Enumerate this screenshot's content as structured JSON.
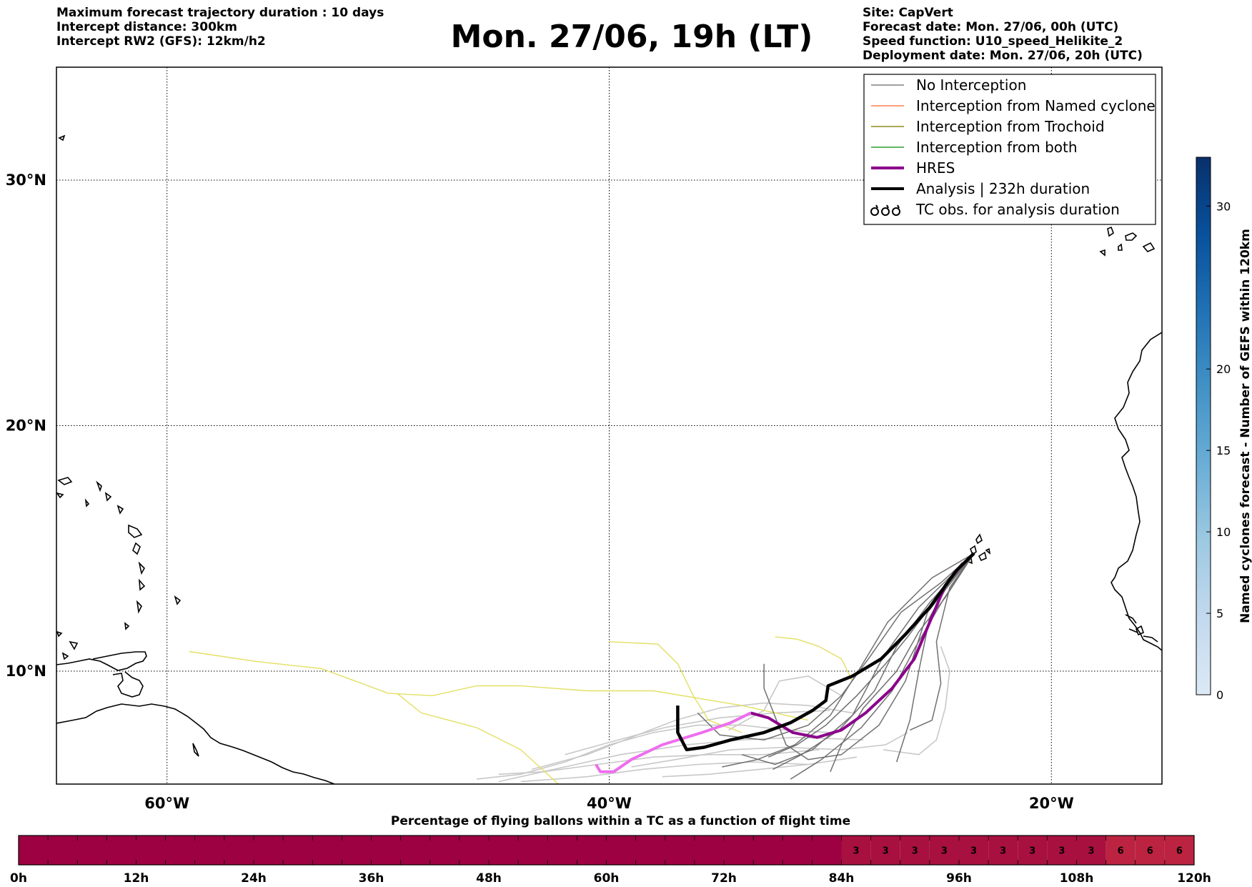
{
  "header_left": [
    "Maximum forecast trajectory duration : 10 days",
    "Intercept distance: 300km",
    "Intercept RW2 (GFS):  12km/h2"
  ],
  "title": "Mon. 27/06, 19h (LT)",
  "header_right": [
    "Site: CapVert",
    "Forecast date: Mon. 27/06, 00h (UTC)",
    "Speed function: U10_speed_Helikite_2",
    "Deployment date: Mon. 27/06, 20h (UTC)"
  ],
  "legend": [
    {
      "label": "No Interception",
      "color": "#808080",
      "style": "thin-line"
    },
    {
      "label": "Interception from Named cyclone",
      "color": "#ff7f50",
      "style": "thin-line"
    },
    {
      "label": "Interception from Trochoid",
      "color": "#8b8b20",
      "style": "thin-line"
    },
    {
      "label": "Interception from both",
      "color": "#2ca02c",
      "style": "thin-line"
    },
    {
      "label": "HRES",
      "color": "#8b008b",
      "style": "thick-line"
    },
    {
      "label": "Analysis | 232h duration",
      "color": "#000000",
      "style": "thick-line"
    },
    {
      "label": "TC obs. for analysis duration",
      "color": "#000000",
      "style": "tc-symbols"
    }
  ],
  "colorbar": {
    "label": "Named cyclones forecast - Number of GEFS within 120km",
    "ticks": [
      "0",
      "5",
      "10",
      "15",
      "20",
      "30"
    ],
    "colors": [
      "#dce9f6",
      "#c3d9ee",
      "#9dc9e2",
      "#6baed6",
      "#4292c6",
      "#2171b5",
      "#08519c",
      "#08306b"
    ]
  },
  "chart_data": [
    {
      "type": "map-trajectories",
      "projection": "equirectangular",
      "lon_range": [
        -65,
        -15
      ],
      "lat_range": [
        5.4,
        34.6
      ],
      "xticks": [
        {
          "value": -60,
          "label": "60°W"
        },
        {
          "value": -40,
          "label": "40°W"
        },
        {
          "value": -20,
          "label": "20°W"
        }
      ],
      "yticks": [
        {
          "value": 30,
          "label": "30°N"
        },
        {
          "value": 20,
          "label": "20°N"
        },
        {
          "value": 10,
          "label": "10°N"
        }
      ],
      "grid": true,
      "legend_position": "top-right",
      "launch_site": {
        "lon": -23.5,
        "lat": 14.8
      },
      "analysis_track": [
        [
          -23.5,
          14.8
        ],
        [
          -24.3,
          14.1
        ],
        [
          -25.5,
          12.6
        ],
        [
          -26.6,
          11.5
        ],
        [
          -27.7,
          10.5
        ],
        [
          -29.0,
          9.8
        ],
        [
          -30.1,
          9.4
        ],
        [
          -30.2,
          8.8
        ],
        [
          -30.8,
          8.4
        ],
        [
          -31.8,
          7.9
        ],
        [
          -33.0,
          7.5
        ],
        [
          -34.5,
          7.2
        ],
        [
          -35.7,
          6.9
        ],
        [
          -36.5,
          6.8
        ],
        [
          -36.9,
          7.5
        ],
        [
          -36.9,
          8.6
        ]
      ],
      "hres_track": [
        [
          -24.0,
          14.4
        ],
        [
          -24.8,
          13.5
        ],
        [
          -25.5,
          12.0
        ],
        [
          -26.2,
          10.5
        ],
        [
          -27.2,
          9.3
        ],
        [
          -28.4,
          8.3
        ],
        [
          -29.5,
          7.6
        ],
        [
          -30.6,
          7.3
        ],
        [
          -31.7,
          7.5
        ],
        [
          -32.8,
          8.1
        ],
        [
          -33.6,
          8.3
        ],
        [
          -34.5,
          7.9
        ],
        [
          -35.8,
          7.5
        ],
        [
          -37.6,
          7.0
        ],
        [
          -39.0,
          6.4
        ],
        [
          -39.8,
          5.9
        ],
        [
          -40.4,
          5.9
        ],
        [
          -40.6,
          6.2
        ]
      ],
      "trochoid_tracks": [
        [
          [
            -29.0,
            9.6
          ],
          [
            -29.5,
            10.5
          ],
          [
            -30.5,
            11.0
          ],
          [
            -31.5,
            11.3
          ],
          [
            -32.5,
            11.4
          ]
        ],
        [
          [
            -31.0,
            8.0
          ],
          [
            -32.5,
            8.3
          ],
          [
            -34.0,
            8.6
          ],
          [
            -36.0,
            8.9
          ],
          [
            -38.0,
            9.2
          ],
          [
            -41.0,
            9.2
          ],
          [
            -44.0,
            9.4
          ],
          [
            -46.0,
            9.4
          ],
          [
            -48.0,
            9.0
          ],
          [
            -50.0,
            9.1
          ],
          [
            -51.5,
            9.6
          ],
          [
            -53.0,
            10.1
          ],
          [
            -56.0,
            10.4
          ],
          [
            -59.0,
            10.8
          ]
        ],
        [
          [
            -34.0,
            7.5
          ],
          [
            -35.5,
            8.0
          ],
          [
            -36.2,
            9.0
          ],
          [
            -36.9,
            10.3
          ],
          [
            -37.8,
            11.1
          ],
          [
            -40.0,
            11.2
          ]
        ],
        [
          [
            -42.3,
            5.4
          ],
          [
            -44.0,
            6.8
          ],
          [
            -46.0,
            7.7
          ],
          [
            -48.5,
            8.3
          ],
          [
            -49.6,
            9.1
          ]
        ]
      ],
      "ensemble_tracks_near_site": [
        [
          [
            -23.5,
            14.8
          ],
          [
            -25.0,
            13.2
          ],
          [
            -26.5,
            11.4
          ],
          [
            -27.5,
            10.3
          ],
          [
            -28.8,
            9.0
          ],
          [
            -30.2,
            7.8
          ],
          [
            -31.5,
            7.0
          ],
          [
            -32.8,
            6.5
          ]
        ],
        [
          [
            -23.5,
            14.8
          ],
          [
            -24.8,
            13.0
          ],
          [
            -26.0,
            11.6
          ],
          [
            -27.0,
            10.0
          ],
          [
            -28.5,
            8.5
          ],
          [
            -29.5,
            7.0
          ],
          [
            -30.0,
            5.9
          ]
        ],
        [
          [
            -23.5,
            14.8
          ],
          [
            -25.5,
            12.8
          ],
          [
            -27.0,
            11.0
          ],
          [
            -28.0,
            9.2
          ],
          [
            -29.6,
            7.6
          ],
          [
            -31.3,
            6.6
          ],
          [
            -32.6,
            6.0
          ]
        ],
        [
          [
            -23.5,
            14.8
          ],
          [
            -24.5,
            13.8
          ],
          [
            -25.5,
            12.2
          ],
          [
            -26.0,
            10.0
          ],
          [
            -26.4,
            8.0
          ],
          [
            -27.0,
            6.3
          ]
        ],
        [
          [
            -23.5,
            14.8
          ],
          [
            -25.0,
            13.6
          ],
          [
            -26.8,
            12.4
          ],
          [
            -28.2,
            10.6
          ],
          [
            -29.5,
            9.0
          ],
          [
            -31.0,
            7.8
          ],
          [
            -33.0,
            7.2
          ],
          [
            -35.0,
            7.4
          ],
          [
            -36.0,
            8.3
          ]
        ],
        [
          [
            -23.5,
            14.8
          ],
          [
            -26.0,
            12.6
          ],
          [
            -27.6,
            10.6
          ],
          [
            -29.0,
            8.2
          ],
          [
            -30.8,
            6.8
          ],
          [
            -32.5,
            6.2
          ],
          [
            -34.0,
            6.6
          ]
        ],
        [
          [
            -23.5,
            14.8
          ],
          [
            -24.6,
            13.4
          ],
          [
            -25.2,
            11.2
          ],
          [
            -25.0,
            9.5
          ],
          [
            -25.4,
            8.0
          ],
          [
            -26.4,
            7.6
          ]
        ],
        [
          [
            -23.5,
            14.8
          ],
          [
            -25.4,
            13.8
          ],
          [
            -27.4,
            12.0
          ],
          [
            -28.6,
            10.2
          ],
          [
            -30.0,
            8.2
          ],
          [
            -31.6,
            7.0
          ],
          [
            -33.3,
            6.4
          ],
          [
            -34.9,
            6.1
          ]
        ],
        [
          [
            -23.5,
            14.8
          ],
          [
            -25.6,
            12.4
          ],
          [
            -26.6,
            9.6
          ],
          [
            -27.8,
            7.8
          ],
          [
            -29.5,
            6.6
          ],
          [
            -31.0,
            6.4
          ],
          [
            -32.0,
            7.0
          ],
          [
            -33.0,
            9.3
          ],
          [
            -33.0,
            10.3
          ]
        ],
        [
          [
            -23.5,
            14.8
          ],
          [
            -24.9,
            12.9
          ],
          [
            -26.2,
            10.9
          ],
          [
            -27.2,
            9.2
          ],
          [
            -28.6,
            7.7
          ],
          [
            -30.4,
            6.4
          ],
          [
            -31.8,
            5.6
          ]
        ]
      ],
      "ensemble_tracks_far": [
        [
          [
            -30.0,
            7.5
          ],
          [
            -32.0,
            7.6
          ],
          [
            -34.0,
            7.8
          ],
          [
            -36.0,
            7.8
          ],
          [
            -38.0,
            7.5
          ],
          [
            -40.0,
            7.0
          ],
          [
            -42.0,
            6.3
          ],
          [
            -44.0,
            5.8
          ],
          [
            -46.0,
            5.6
          ]
        ],
        [
          [
            -30.5,
            6.8
          ],
          [
            -33.0,
            6.6
          ],
          [
            -35.5,
            6.6
          ],
          [
            -38.0,
            6.5
          ],
          [
            -40.5,
            6.2
          ],
          [
            -43.0,
            5.9
          ],
          [
            -45.0,
            5.8
          ]
        ],
        [
          [
            -29.0,
            8.3
          ],
          [
            -31.0,
            8.6
          ],
          [
            -33.0,
            8.7
          ],
          [
            -35.0,
            8.5
          ],
          [
            -37.0,
            8.0
          ],
          [
            -39.0,
            7.3
          ],
          [
            -41.0,
            6.6
          ],
          [
            -43.5,
            6.0
          ]
        ],
        [
          [
            -31.0,
            6.2
          ],
          [
            -33.5,
            6.3
          ],
          [
            -36.0,
            6.2
          ],
          [
            -38.5,
            6.0
          ],
          [
            -41.0,
            5.7
          ],
          [
            -44.0,
            5.5
          ]
        ],
        [
          [
            -28.5,
            7.2
          ],
          [
            -31.5,
            7.3
          ],
          [
            -34.0,
            7.2
          ],
          [
            -36.5,
            7.0
          ],
          [
            -39.5,
            6.6
          ],
          [
            -42.5,
            6.0
          ],
          [
            -45.0,
            5.5
          ]
        ],
        [
          [
            -30.0,
            8.4
          ],
          [
            -32.5,
            8.3
          ],
          [
            -35.0,
            8.1
          ],
          [
            -37.5,
            7.7
          ],
          [
            -40.0,
            7.1
          ],
          [
            -42.0,
            6.6
          ]
        ],
        [
          [
            -28.8,
            6.5
          ],
          [
            -31.0,
            6.2
          ],
          [
            -33.2,
            6.0
          ],
          [
            -35.5,
            5.8
          ],
          [
            -37.6,
            5.7
          ]
        ],
        [
          [
            -26.5,
            7.5
          ],
          [
            -27.5,
            7.0
          ],
          [
            -29.5,
            6.8
          ],
          [
            -32.0,
            6.9
          ],
          [
            -34.5,
            6.8
          ],
          [
            -37.0,
            6.4
          ],
          [
            -39.0,
            6.1
          ]
        ],
        [
          [
            -25.0,
            11.0
          ],
          [
            -24.6,
            10.0
          ],
          [
            -24.8,
            8.5
          ],
          [
            -25.2,
            7.2
          ],
          [
            -26.0,
            6.6
          ],
          [
            -27.6,
            6.8
          ]
        ],
        [
          [
            -29.5,
            9.0
          ],
          [
            -31.0,
            9.8
          ],
          [
            -32.3,
            9.6
          ],
          [
            -33.0,
            8.4
          ],
          [
            -34.6,
            7.6
          ]
        ]
      ]
    },
    {
      "type": "heatmap-strip",
      "title": "Percentage of flying ballons within a TC as a function of flight time",
      "xlabels": [
        "0h",
        "12h",
        "24h",
        "36h",
        "48h",
        "60h",
        "72h",
        "84h",
        "96h",
        "108h",
        "120h"
      ],
      "x_range_hours": [
        0,
        120
      ],
      "bin_hours": 3,
      "bins": [
        {
          "from": 0,
          "to": 84,
          "value": 0
        },
        {
          "from": 84,
          "to": 87,
          "value": 3
        },
        {
          "from": 87,
          "to": 90,
          "value": 3
        },
        {
          "from": 90,
          "to": 93,
          "value": 3
        },
        {
          "from": 93,
          "to": 96,
          "value": 3
        },
        {
          "from": 96,
          "to": 99,
          "value": 3
        },
        {
          "from": 99,
          "to": 102,
          "value": 3
        },
        {
          "from": 102,
          "to": 105,
          "value": 3
        },
        {
          "from": 105,
          "to": 108,
          "value": 3
        },
        {
          "from": 108,
          "to": 111,
          "value": 3
        },
        {
          "from": 111,
          "to": 114,
          "value": 6
        },
        {
          "from": 114,
          "to": 117,
          "value": 6
        },
        {
          "from": 117,
          "to": 120,
          "value": 6
        }
      ],
      "colors": {
        "0": "#9e0142",
        "3": "#a8103f",
        "6": "#bb2340"
      }
    }
  ]
}
